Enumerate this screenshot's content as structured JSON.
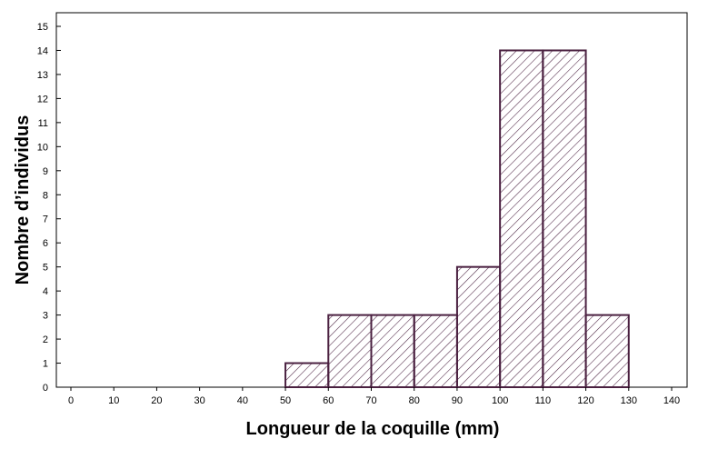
{
  "chart_data": {
    "type": "bar",
    "title": "",
    "xlabel": "Longueur de la coquille (mm)",
    "ylabel": "Nombre d’individus",
    "bins": [
      {
        "from": 50,
        "to": 60,
        "value": 1
      },
      {
        "from": 60,
        "to": 70,
        "value": 3
      },
      {
        "from": 70,
        "to": 80,
        "value": 3
      },
      {
        "from": 80,
        "to": 90,
        "value": 3
      },
      {
        "from": 90,
        "to": 100,
        "value": 5
      },
      {
        "from": 100,
        "to": 110,
        "value": 14
      },
      {
        "from": 110,
        "to": 120,
        "value": 14
      },
      {
        "from": 120,
        "to": 130,
        "value": 3
      }
    ],
    "xlim": [
      0,
      140
    ],
    "ylim": [
      0,
      15
    ],
    "xticks": [
      "0",
      "10",
      "20",
      "30",
      "40",
      "50",
      "60",
      "70",
      "80",
      "90",
      "100",
      "110",
      "120",
      "130",
      "140"
    ],
    "yticks": [
      "0",
      "1",
      "2",
      "3",
      "4",
      "5",
      "6",
      "7",
      "8",
      "9",
      "10",
      "11",
      "12",
      "13",
      "14",
      "15"
    ],
    "grid": false,
    "fill": "hatched",
    "bar_color": "#4a2040"
  }
}
